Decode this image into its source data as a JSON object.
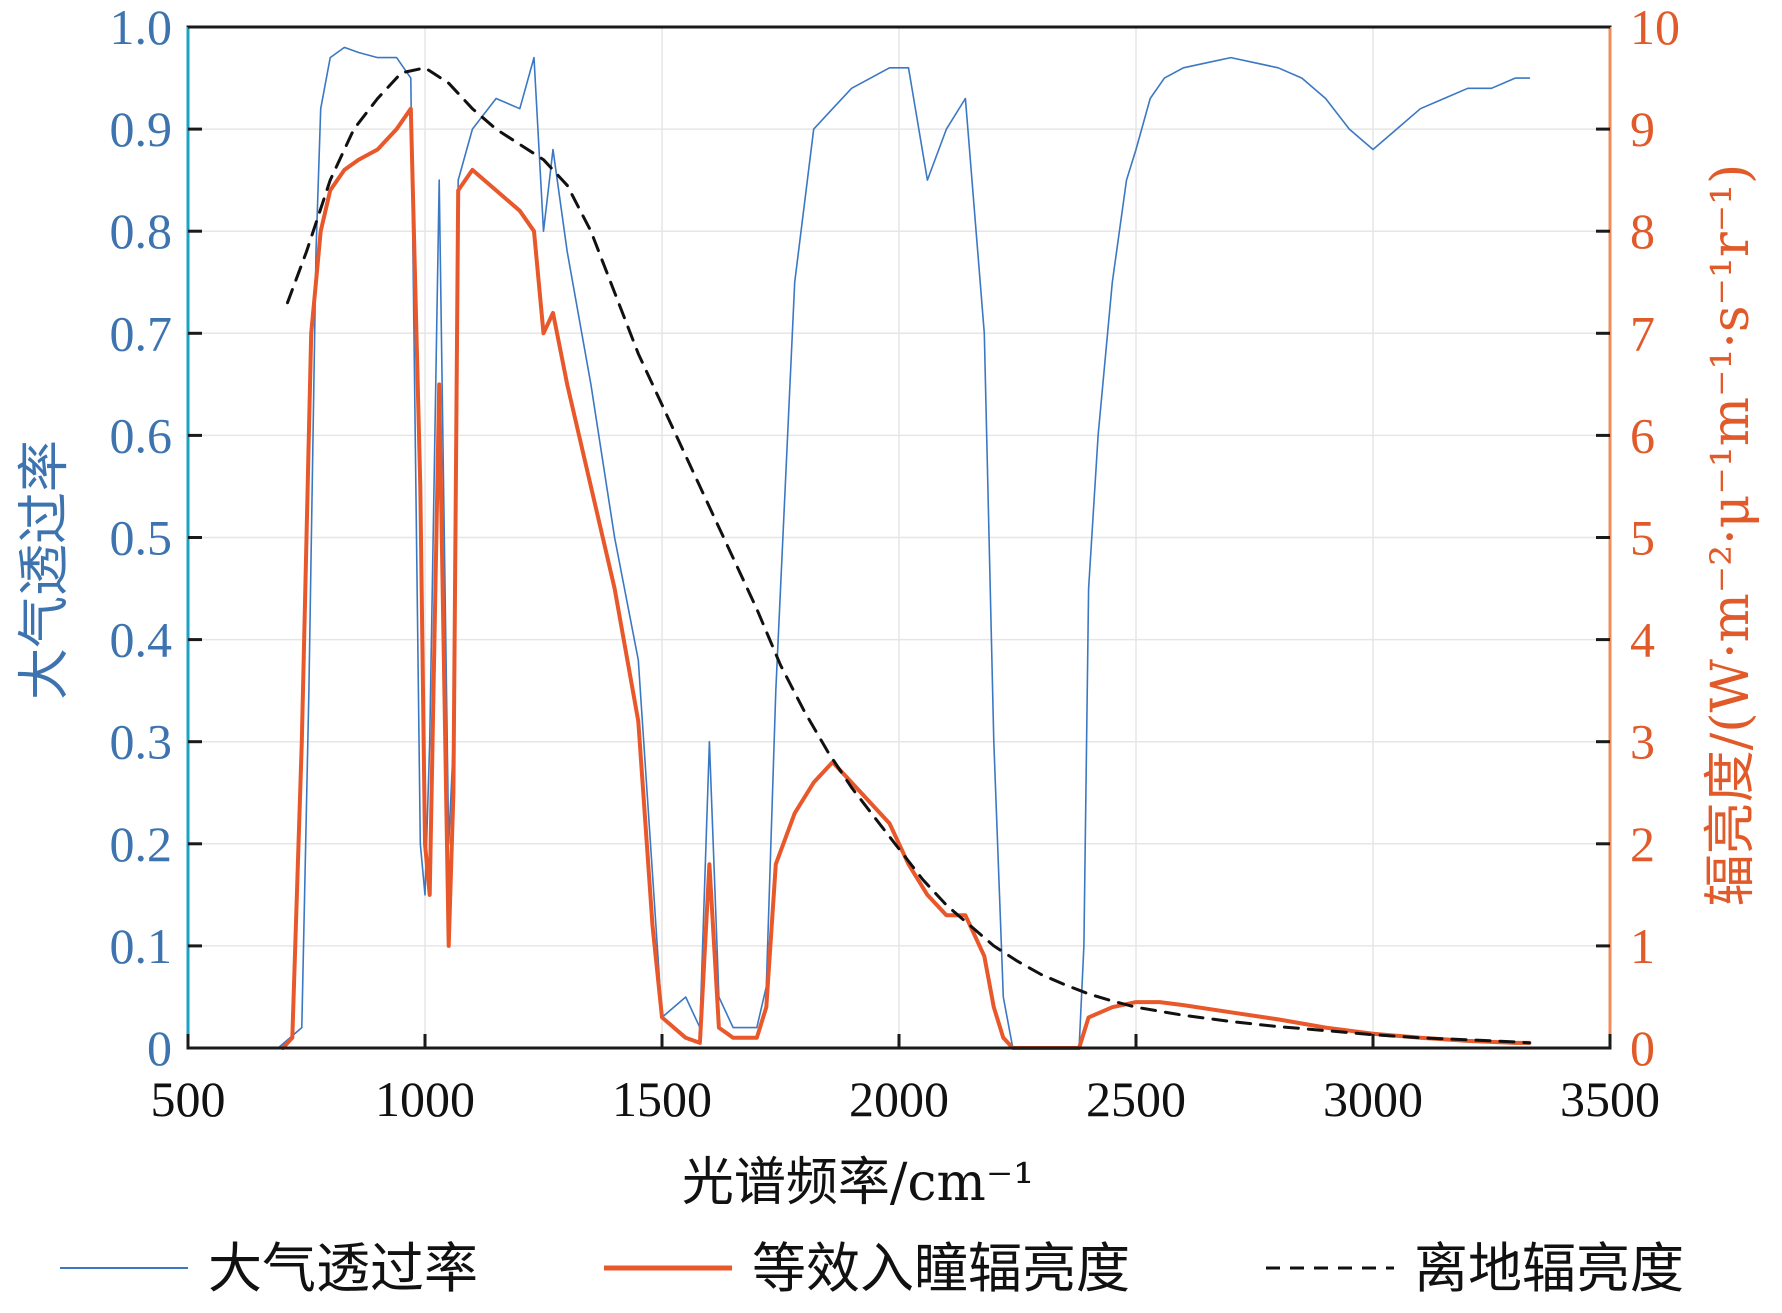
{
  "chart_data": {
    "type": "line",
    "title": "",
    "xlabel": "光谱频率/cm⁻¹",
    "ylabel_left": "大气透过率",
    "ylabel_right": "辐亮度/(W·m⁻²·μ⁻¹m⁻¹·s⁻¹r⁻¹)",
    "xlim": [
      500,
      3500
    ],
    "ylim_left": [
      0,
      1.0
    ],
    "ylim_right": [
      0,
      10
    ],
    "x_ticks": [
      "500",
      "1000",
      "1500",
      "2000",
      "2500",
      "3000",
      "3500"
    ],
    "y_left_ticks": [
      "0",
      "0.1",
      "0.2",
      "0.3",
      "0.4",
      "0.5",
      "0.6",
      "0.7",
      "0.8",
      "0.9",
      "1.0"
    ],
    "y_right_ticks": [
      "0",
      "1",
      "2",
      "3",
      "4",
      "5",
      "6",
      "7",
      "8",
      "9",
      "10"
    ],
    "grid": true,
    "legend_position": "bottom",
    "colors": {
      "left_axis": "#3d74b0",
      "right_axis": "#e15a2a",
      "transmittance": "#3b78c4",
      "entrance_radiance": "#e8582a",
      "ground_radiance": "#111111",
      "grid": "#e6e6e6"
    },
    "series": [
      {
        "name": "大气透过率",
        "axis": "left",
        "style": "solid-thin",
        "x": [
          690,
          740,
          755,
          770,
          780,
          800,
          830,
          860,
          900,
          940,
          970,
          990,
          1000,
          1010,
          1030,
          1050,
          1060,
          1070,
          1100,
          1150,
          1200,
          1230,
          1250,
          1270,
          1300,
          1350,
          1400,
          1450,
          1500,
          1550,
          1580,
          1600,
          1620,
          1650,
          1700,
          1720,
          1740,
          1780,
          1820,
          1860,
          1900,
          1940,
          1980,
          2020,
          2060,
          2100,
          2140,
          2180,
          2200,
          2220,
          2240,
          2260,
          2300,
          2350,
          2380,
          2390,
          2400,
          2420,
          2450,
          2480,
          2500,
          2530,
          2560,
          2600,
          2650,
          2700,
          2750,
          2800,
          2850,
          2900,
          2950,
          3000,
          3050,
          3100,
          3150,
          3200,
          3250,
          3300,
          3330
        ],
        "y": [
          0.0,
          0.02,
          0.35,
          0.78,
          0.92,
          0.97,
          0.98,
          0.975,
          0.97,
          0.97,
          0.95,
          0.2,
          0.15,
          0.3,
          0.85,
          0.2,
          0.3,
          0.85,
          0.9,
          0.93,
          0.92,
          0.97,
          0.8,
          0.88,
          0.78,
          0.65,
          0.5,
          0.38,
          0.03,
          0.05,
          0.02,
          0.3,
          0.05,
          0.02,
          0.02,
          0.06,
          0.35,
          0.75,
          0.9,
          0.92,
          0.94,
          0.95,
          0.96,
          0.96,
          0.85,
          0.9,
          0.93,
          0.7,
          0.3,
          0.05,
          0.0,
          0.0,
          0.0,
          0.0,
          0.0,
          0.1,
          0.45,
          0.6,
          0.75,
          0.85,
          0.88,
          0.93,
          0.95,
          0.96,
          0.965,
          0.97,
          0.965,
          0.96,
          0.95,
          0.93,
          0.9,
          0.88,
          0.9,
          0.92,
          0.93,
          0.94,
          0.94,
          0.95,
          0.95
        ]
      },
      {
        "name": "等效入瞳辐亮度",
        "axis": "right",
        "style": "solid-thick",
        "x": [
          700,
          720,
          740,
          760,
          780,
          800,
          830,
          860,
          900,
          940,
          970,
          990,
          1000,
          1010,
          1030,
          1050,
          1060,
          1070,
          1100,
          1150,
          1200,
          1230,
          1250,
          1270,
          1300,
          1350,
          1400,
          1450,
          1480,
          1500,
          1550,
          1580,
          1600,
          1620,
          1650,
          1700,
          1720,
          1740,
          1780,
          1820,
          1860,
          1900,
          1940,
          1980,
          2020,
          2060,
          2100,
          2140,
          2180,
          2200,
          2220,
          2240,
          2300,
          2350,
          2380,
          2400,
          2450,
          2500,
          2550,
          2600,
          2700,
          2800,
          2900,
          3000,
          3100,
          3200,
          3300,
          3330
        ],
        "y": [
          0.0,
          0.1,
          3.0,
          7.0,
          8.0,
          8.4,
          8.6,
          8.7,
          8.8,
          9.0,
          9.2,
          5.5,
          2.0,
          1.5,
          6.5,
          1.0,
          2.5,
          8.4,
          8.6,
          8.4,
          8.2,
          8.0,
          7.0,
          7.2,
          6.5,
          5.5,
          4.5,
          3.2,
          1.2,
          0.3,
          0.1,
          0.05,
          1.8,
          0.2,
          0.1,
          0.1,
          0.4,
          1.8,
          2.3,
          2.6,
          2.8,
          2.6,
          2.4,
          2.2,
          1.8,
          1.5,
          1.3,
          1.3,
          0.9,
          0.4,
          0.1,
          0.0,
          0.0,
          0.0,
          0.0,
          0.3,
          0.4,
          0.45,
          0.45,
          0.42,
          0.35,
          0.28,
          0.2,
          0.14,
          0.1,
          0.07,
          0.05,
          0.05
        ]
      },
      {
        "name": "离地辐亮度",
        "axis": "right",
        "style": "dashed",
        "x": [
          710,
          750,
          800,
          850,
          900,
          950,
          1000,
          1050,
          1100,
          1150,
          1200,
          1250,
          1300,
          1350,
          1400,
          1450,
          1500,
          1550,
          1600,
          1650,
          1700,
          1750,
          1800,
          1850,
          1900,
          1950,
          2000,
          2050,
          2100,
          2150,
          2200,
          2250,
          2300,
          2350,
          2400,
          2450,
          2500,
          2600,
          2700,
          2800,
          2900,
          3000,
          3100,
          3200,
          3300,
          3330
        ],
        "y": [
          7.3,
          7.8,
          8.5,
          9.0,
          9.3,
          9.55,
          9.6,
          9.45,
          9.2,
          9.0,
          8.85,
          8.7,
          8.45,
          8.0,
          7.4,
          6.8,
          6.3,
          5.8,
          5.3,
          4.8,
          4.3,
          3.75,
          3.3,
          2.9,
          2.55,
          2.25,
          1.95,
          1.65,
          1.4,
          1.2,
          1.0,
          0.85,
          0.72,
          0.62,
          0.53,
          0.46,
          0.4,
          0.32,
          0.26,
          0.21,
          0.17,
          0.13,
          0.1,
          0.08,
          0.06,
          0.05
        ]
      }
    ]
  }
}
